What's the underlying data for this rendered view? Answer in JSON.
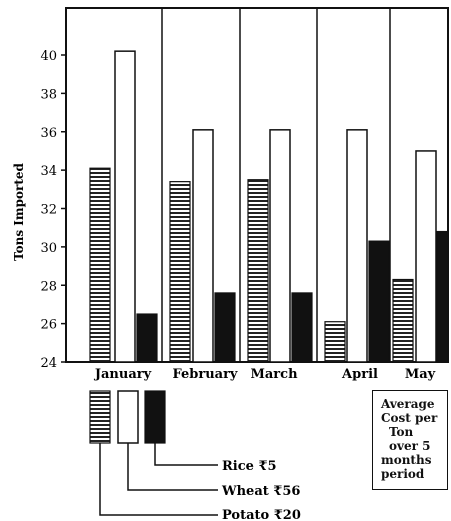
{
  "chart_data": {
    "type": "bar",
    "ylabel": "Tons Imported",
    "ylim": [
      24,
      42
    ],
    "yticks": [
      24,
      26,
      28,
      30,
      32,
      34,
      36,
      38,
      40
    ],
    "categories": [
      "January",
      "February",
      "March",
      "April",
      "May"
    ],
    "series": [
      {
        "key": "potato",
        "values": [
          34.1,
          33.4,
          33.5,
          26.1,
          28.3
        ],
        "pattern": "horizontal-stripes",
        "color": "#222222"
      },
      {
        "key": "wheat",
        "values": [
          40.2,
          36.1,
          36.1,
          36.1,
          35.0
        ],
        "pattern": "hollow",
        "color": "#ffffff"
      },
      {
        "key": "rice",
        "values": [
          26.5,
          27.6,
          27.6,
          30.3,
          30.8
        ],
        "pattern": "solid",
        "color": "#111111"
      }
    ],
    "legend": {
      "entries": [
        {
          "key": "rice",
          "label": "Rice ₹5"
        },
        {
          "key": "wheat",
          "label": "Wheat ₹56"
        },
        {
          "key": "potato",
          "label": "Potato ₹20"
        }
      ]
    },
    "note": [
      "Average",
      "Cost per",
      "Ton",
      "over 5",
      "months",
      "period"
    ],
    "grid": false
  }
}
